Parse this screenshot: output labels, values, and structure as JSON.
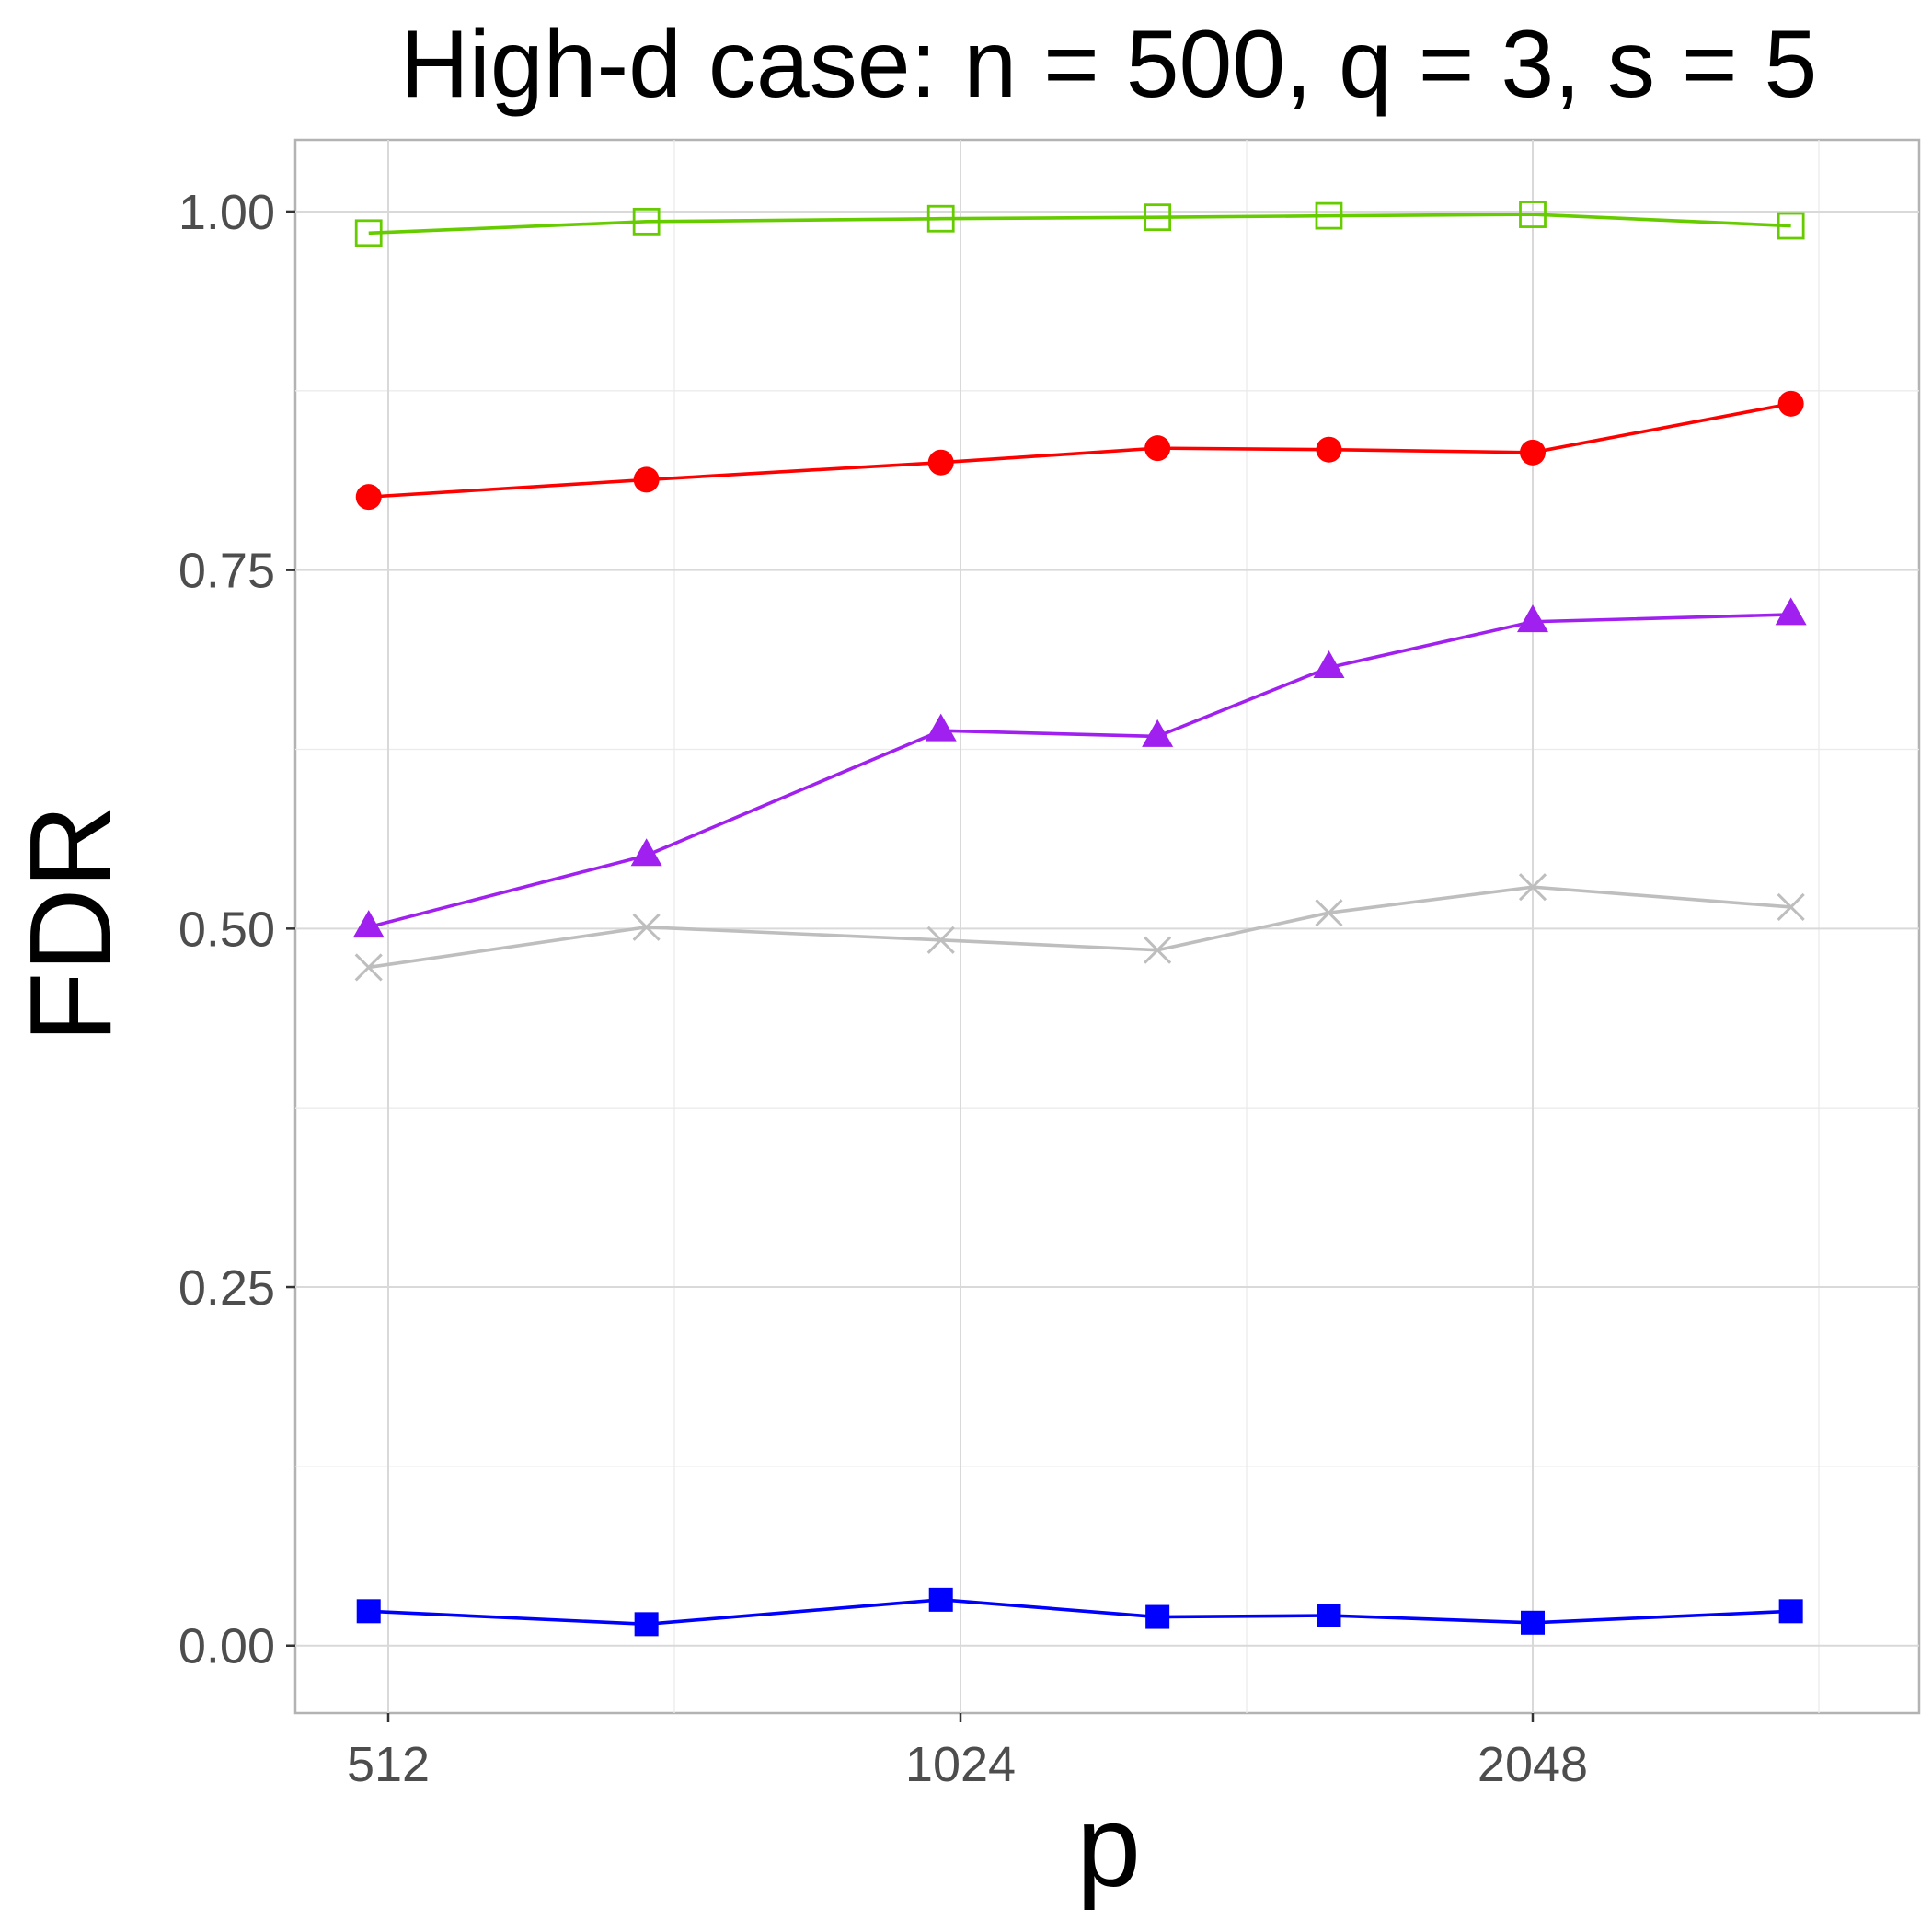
{
  "chart_data": {
    "type": "line",
    "title": "High-d case: n = 500, q = 3, s = 5",
    "xlabel": "p",
    "ylabel": "FDR",
    "x_scale": "log2",
    "x": [
      500,
      700,
      1000,
      1300,
      1600,
      2048,
      2800
    ],
    "x_ticks": [
      {
        "value": 512,
        "label": "512"
      },
      {
        "value": 1024,
        "label": "1024"
      },
      {
        "value": 2048,
        "label": "2048"
      }
    ],
    "ylim": [
      -0.047,
      1.05
    ],
    "y_ticks": [
      {
        "value": 0.0,
        "label": "0.00"
      },
      {
        "value": 0.25,
        "label": "0.25"
      },
      {
        "value": 0.5,
        "label": "0.50"
      },
      {
        "value": 0.75,
        "label": "0.75"
      },
      {
        "value": 1.0,
        "label": "1.00"
      }
    ],
    "grid": true,
    "legend": "none",
    "series": [
      {
        "name": "green-open-square",
        "color": "#66CC00",
        "marker": "open-square",
        "values": [
          0.985,
          0.993,
          0.995,
          0.996,
          0.997,
          0.998,
          0.99
        ]
      },
      {
        "name": "red-circle",
        "color": "#FF0000",
        "marker": "circle",
        "values": [
          0.801,
          0.813,
          0.825,
          0.835,
          0.834,
          0.832,
          0.866
        ]
      },
      {
        "name": "purple-triangle",
        "color": "#A020F0",
        "marker": "triangle",
        "values": [
          0.501,
          0.551,
          0.638,
          0.634,
          0.682,
          0.714,
          0.719
        ]
      },
      {
        "name": "grey-cross",
        "color": "#BEBEBE",
        "marker": "cross",
        "values": [
          0.473,
          0.501,
          0.492,
          0.485,
          0.511,
          0.529,
          0.515
        ]
      },
      {
        "name": "blue-square",
        "color": "#0000FF",
        "marker": "square",
        "values": [
          0.024,
          0.015,
          0.032,
          0.02,
          0.021,
          0.016,
          0.024
        ]
      }
    ]
  }
}
